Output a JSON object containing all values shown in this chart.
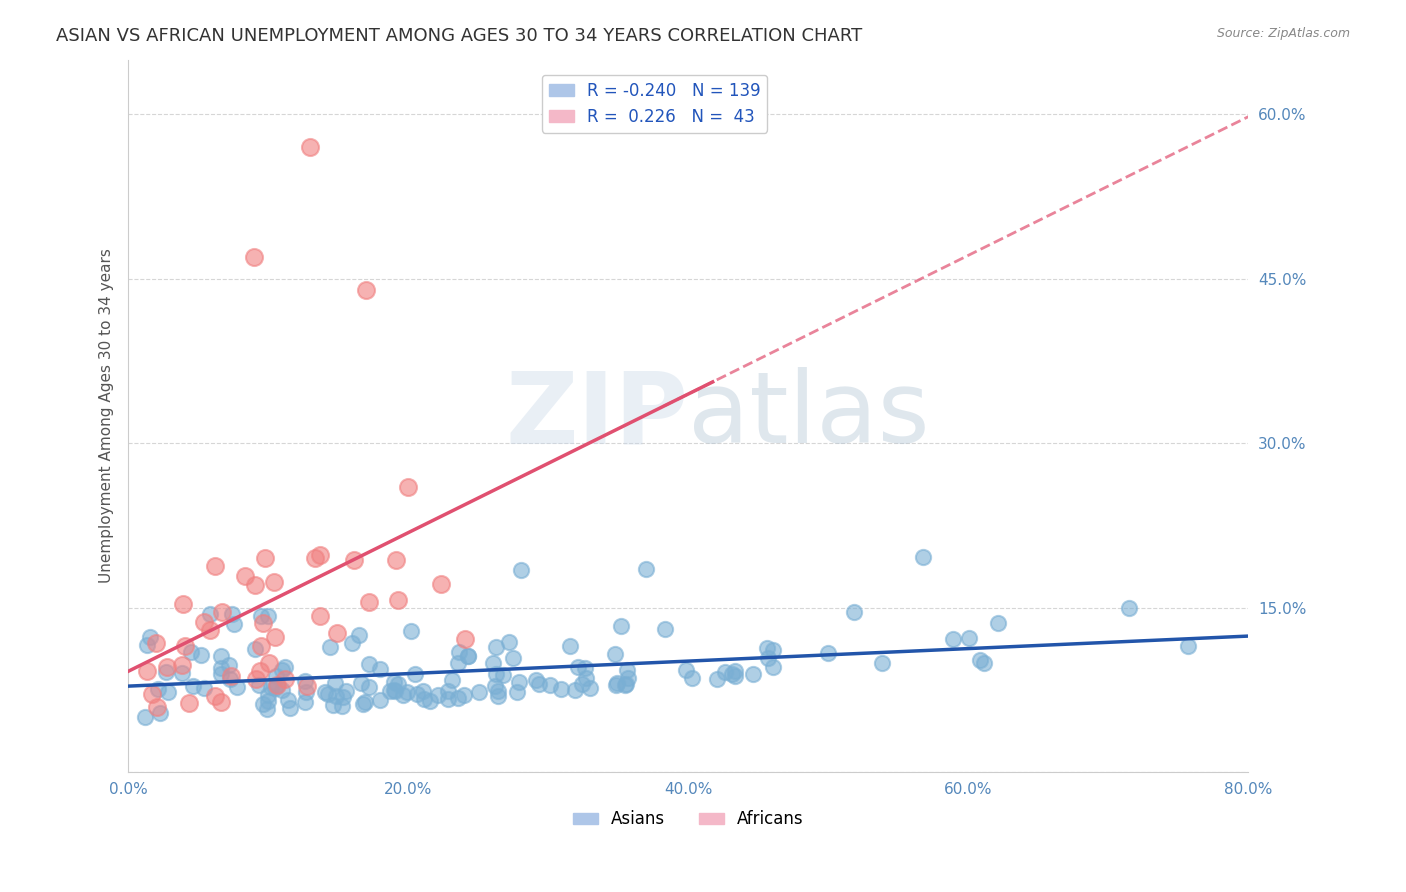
{
  "title": "ASIAN VS AFRICAN UNEMPLOYMENT AMONG AGES 30 TO 34 YEARS CORRELATION CHART",
  "source": "Source: ZipAtlas.com",
  "xlabel": "",
  "ylabel": "Unemployment Among Ages 30 to 34 years",
  "xlim": [
    0.0,
    0.8
  ],
  "ylim": [
    0.0,
    0.65
  ],
  "xticks": [
    0.0,
    0.2,
    0.4,
    0.6,
    0.8
  ],
  "yticks": [
    0.0,
    0.15,
    0.3,
    0.45,
    0.6
  ],
  "ytick_labels": [
    "",
    "15.0%",
    "30.0%",
    "45.0%",
    "60.0%"
  ],
  "xtick_labels": [
    "0.0%",
    "20.0%",
    "40.0%",
    "60.0%",
    "80.0%"
  ],
  "legend_entries": [
    {
      "label": "R = -0.240   N = 139",
      "color": "#aec6e8"
    },
    {
      "label": "R =  0.226   N =  43",
      "color": "#f4b8c8"
    }
  ],
  "asian_color": "#7aafd4",
  "african_color": "#f08080",
  "asian_line_color": "#2255aa",
  "african_line_color": "#e05070",
  "asian_R": -0.24,
  "asian_N": 139,
  "african_R": 0.226,
  "african_N": 43,
  "background_color": "#ffffff",
  "grid_color": "#cccccc",
  "watermark": "ZIPatlas",
  "watermark_zip_color": "#ccddee",
  "watermark_atlas_color": "#bbccdd",
  "title_fontsize": 13,
  "axis_label_fontsize": 11,
  "tick_label_fontsize": 11,
  "seed": 42
}
